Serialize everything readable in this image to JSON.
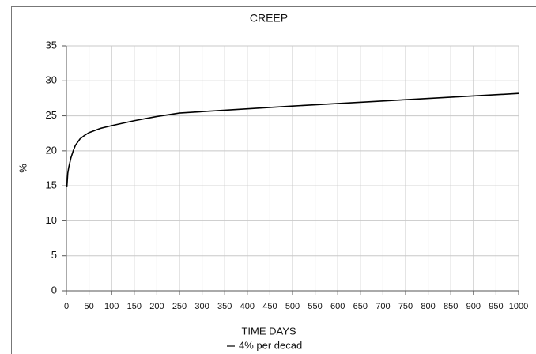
{
  "chart_data": {
    "type": "line",
    "title": "CREEP",
    "x_label": "TIME   DAYS",
    "y_label": "%",
    "x": [
      1,
      3,
      5,
      10,
      15,
      20,
      30,
      40,
      50,
      75,
      100,
      150,
      200,
      250,
      500,
      750,
      1000
    ],
    "series": [
      {
        "name": "4% per decad",
        "color": "#000000",
        "values": [
          14.8,
          16.8,
          17.6,
          19.0,
          20.0,
          20.8,
          21.7,
          22.2,
          22.6,
          23.2,
          23.6,
          24.3,
          24.9,
          25.4,
          26.4,
          27.3,
          28.2
        ]
      }
    ],
    "xlim": [
      0,
      1000
    ],
    "xticks": [
      0,
      50,
      100,
      150,
      200,
      250,
      300,
      350,
      400,
      450,
      500,
      550,
      600,
      650,
      700,
      750,
      800,
      850,
      900,
      950,
      1000
    ],
    "ylim": [
      0,
      35
    ],
    "yticks": [
      0,
      5,
      10,
      15,
      20,
      25,
      30,
      35
    ],
    "grid": true
  }
}
